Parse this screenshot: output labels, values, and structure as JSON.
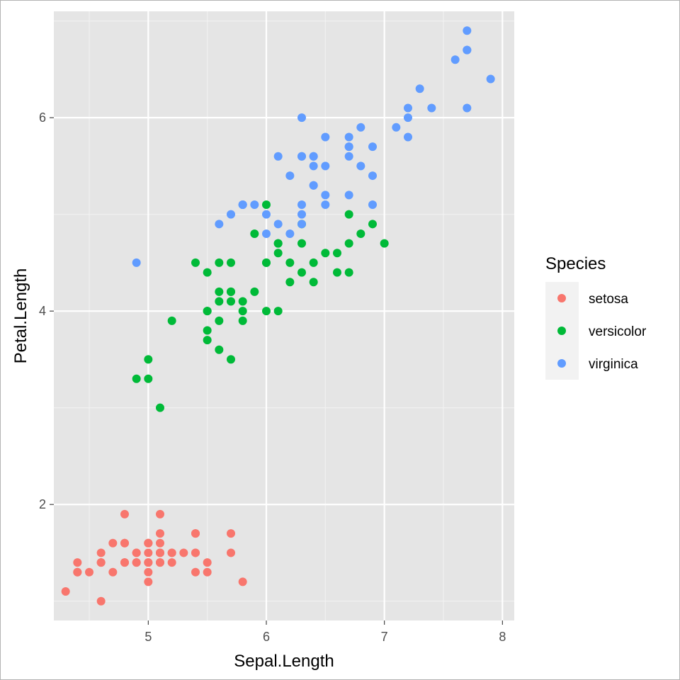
{
  "chart_data": {
    "type": "scatter",
    "xlabel": "Sepal.Length",
    "ylabel": "Petal.Length",
    "xlim": [
      4.2,
      8.1
    ],
    "ylim": [
      0.8,
      7.1
    ],
    "x_ticks": [
      5,
      6,
      7,
      8
    ],
    "y_ticks": [
      2,
      4,
      6
    ],
    "x_tick_labels": [
      "5",
      "6",
      "7",
      "8"
    ],
    "y_tick_labels": [
      "2",
      "4",
      "6"
    ],
    "grid": true,
    "legend": {
      "title": "Species",
      "position": "right"
    },
    "panel_background": "#e5e5e5",
    "series": [
      {
        "name": "setosa",
        "color": "#f8766d",
        "points": [
          [
            5.1,
            1.4
          ],
          [
            4.9,
            1.4
          ],
          [
            4.7,
            1.3
          ],
          [
            4.6,
            1.5
          ],
          [
            5.0,
            1.4
          ],
          [
            5.4,
            1.7
          ],
          [
            4.6,
            1.4
          ],
          [
            5.0,
            1.5
          ],
          [
            4.4,
            1.4
          ],
          [
            4.9,
            1.5
          ],
          [
            5.4,
            1.5
          ],
          [
            4.8,
            1.6
          ],
          [
            4.8,
            1.4
          ],
          [
            4.3,
            1.1
          ],
          [
            5.8,
            1.2
          ],
          [
            5.7,
            1.5
          ],
          [
            5.4,
            1.3
          ],
          [
            5.1,
            1.4
          ],
          [
            5.7,
            1.7
          ],
          [
            5.1,
            1.5
          ],
          [
            5.4,
            1.7
          ],
          [
            5.1,
            1.5
          ],
          [
            4.6,
            1.0
          ],
          [
            5.1,
            1.7
          ],
          [
            4.8,
            1.9
          ],
          [
            5.0,
            1.6
          ],
          [
            5.0,
            1.6
          ],
          [
            5.2,
            1.5
          ],
          [
            5.2,
            1.4
          ],
          [
            4.7,
            1.6
          ],
          [
            4.8,
            1.6
          ],
          [
            5.4,
            1.5
          ],
          [
            5.2,
            1.5
          ],
          [
            5.5,
            1.4
          ],
          [
            4.9,
            1.5
          ],
          [
            5.0,
            1.2
          ],
          [
            5.5,
            1.3
          ],
          [
            4.9,
            1.4
          ],
          [
            4.4,
            1.3
          ],
          [
            5.1,
            1.5
          ],
          [
            5.0,
            1.3
          ],
          [
            4.5,
            1.3
          ],
          [
            4.4,
            1.3
          ],
          [
            5.0,
            1.6
          ],
          [
            5.1,
            1.9
          ],
          [
            4.8,
            1.4
          ],
          [
            5.1,
            1.6
          ],
          [
            4.6,
            1.4
          ],
          [
            5.3,
            1.5
          ],
          [
            5.0,
            1.4
          ]
        ]
      },
      {
        "name": "versicolor",
        "color": "#00ba38",
        "points": [
          [
            7.0,
            4.7
          ],
          [
            6.4,
            4.5
          ],
          [
            6.9,
            4.9
          ],
          [
            5.5,
            4.0
          ],
          [
            6.5,
            4.6
          ],
          [
            5.7,
            4.5
          ],
          [
            6.3,
            4.7
          ],
          [
            4.9,
            3.3
          ],
          [
            6.6,
            4.6
          ],
          [
            5.2,
            3.9
          ],
          [
            5.0,
            3.5
          ],
          [
            5.9,
            4.2
          ],
          [
            6.0,
            4.0
          ],
          [
            6.1,
            4.7
          ],
          [
            5.6,
            3.6
          ],
          [
            6.7,
            4.4
          ],
          [
            5.6,
            4.5
          ],
          [
            5.8,
            4.1
          ],
          [
            6.2,
            4.5
          ],
          [
            5.6,
            3.9
          ],
          [
            5.9,
            4.8
          ],
          [
            6.1,
            4.0
          ],
          [
            6.3,
            4.9
          ],
          [
            6.1,
            4.7
          ],
          [
            6.4,
            4.3
          ],
          [
            6.6,
            4.4
          ],
          [
            6.8,
            4.8
          ],
          [
            6.7,
            5.0
          ],
          [
            6.0,
            4.5
          ],
          [
            5.7,
            3.5
          ],
          [
            5.5,
            3.8
          ],
          [
            5.5,
            3.7
          ],
          [
            5.8,
            3.9
          ],
          [
            6.0,
            5.1
          ],
          [
            5.4,
            4.5
          ],
          [
            6.0,
            4.5
          ],
          [
            6.7,
            4.7
          ],
          [
            6.3,
            4.4
          ],
          [
            5.6,
            4.1
          ],
          [
            5.5,
            4.0
          ],
          [
            5.5,
            4.4
          ],
          [
            6.1,
            4.6
          ],
          [
            5.8,
            4.0
          ],
          [
            5.0,
            3.3
          ],
          [
            5.6,
            4.2
          ],
          [
            5.7,
            4.2
          ],
          [
            5.7,
            4.2
          ],
          [
            6.2,
            4.3
          ],
          [
            5.1,
            3.0
          ],
          [
            5.7,
            4.1
          ]
        ]
      },
      {
        "name": "virginica",
        "color": "#619cff",
        "points": [
          [
            6.3,
            6.0
          ],
          [
            5.8,
            5.1
          ],
          [
            7.1,
            5.9
          ],
          [
            6.3,
            5.6
          ],
          [
            6.5,
            5.8
          ],
          [
            7.6,
            6.6
          ],
          [
            4.9,
            4.5
          ],
          [
            7.3,
            6.3
          ],
          [
            6.7,
            5.8
          ],
          [
            7.2,
            6.1
          ],
          [
            6.5,
            5.1
          ],
          [
            6.4,
            5.3
          ],
          [
            6.8,
            5.5
          ],
          [
            5.7,
            5.0
          ],
          [
            5.8,
            5.1
          ],
          [
            6.4,
            5.3
          ],
          [
            6.5,
            5.5
          ],
          [
            7.7,
            6.7
          ],
          [
            7.7,
            6.9
          ],
          [
            6.0,
            5.0
          ],
          [
            6.9,
            5.7
          ],
          [
            5.6,
            4.9
          ],
          [
            7.7,
            6.7
          ],
          [
            6.3,
            4.9
          ],
          [
            6.7,
            5.7
          ],
          [
            7.2,
            6.0
          ],
          [
            6.2,
            4.8
          ],
          [
            6.1,
            4.9
          ],
          [
            6.4,
            5.6
          ],
          [
            7.2,
            5.8
          ],
          [
            7.4,
            6.1
          ],
          [
            7.9,
            6.4
          ],
          [
            6.4,
            5.6
          ],
          [
            6.3,
            5.1
          ],
          [
            6.1,
            5.6
          ],
          [
            7.7,
            6.1
          ],
          [
            6.3,
            5.6
          ],
          [
            6.4,
            5.5
          ],
          [
            6.0,
            4.8
          ],
          [
            6.9,
            5.4
          ],
          [
            6.7,
            5.6
          ],
          [
            6.9,
            5.1
          ],
          [
            5.8,
            5.1
          ],
          [
            6.8,
            5.9
          ],
          [
            6.7,
            5.7
          ],
          [
            6.7,
            5.2
          ],
          [
            6.3,
            5.0
          ],
          [
            6.5,
            5.2
          ],
          [
            6.2,
            5.4
          ],
          [
            5.9,
            5.1
          ]
        ]
      }
    ]
  }
}
